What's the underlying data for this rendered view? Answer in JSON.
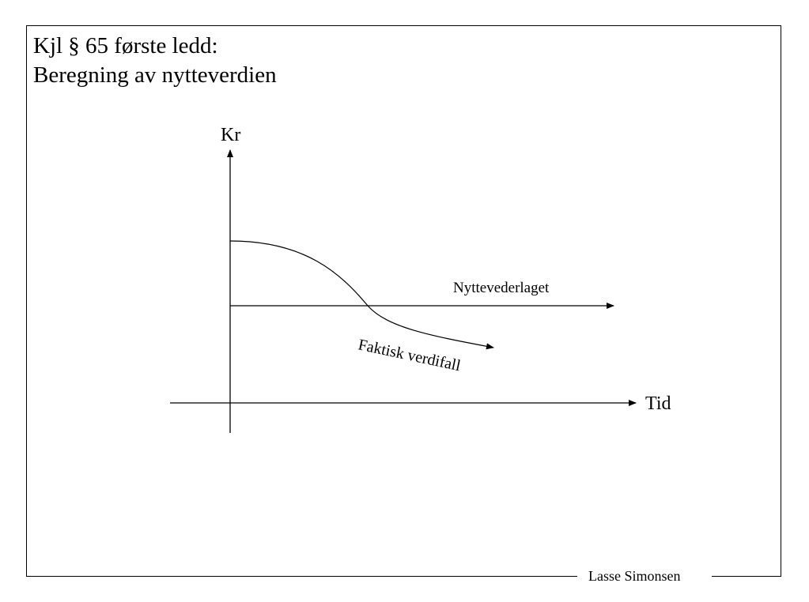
{
  "slide": {
    "title_line1": "Kjl § 65 første ledd:",
    "title_line2": "Beregning av nytteverdien",
    "author": "Lasse Simonsen"
  },
  "diagram": {
    "y_axis_label": "Kr",
    "x_axis_label": "Tid",
    "horizontal_line_label": "Nyttevederlaget",
    "curve_label": "Faktisk verdifall"
  }
}
